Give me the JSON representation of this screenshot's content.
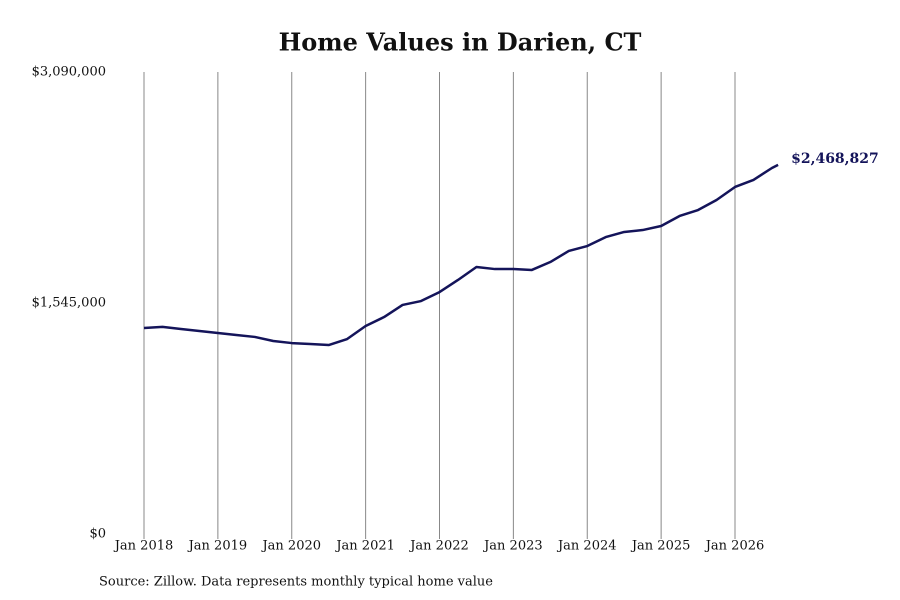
{
  "chart_data": {
    "type": "line",
    "title": "Home Values in Darien, CT",
    "source": "Source: Zillow. Data represents monthly typical home value",
    "x": [
      "2018-01",
      "2018-04",
      "2018-07",
      "2018-10",
      "2019-01",
      "2019-04",
      "2019-07",
      "2019-10",
      "2020-01",
      "2020-04",
      "2020-07",
      "2020-10",
      "2021-01",
      "2021-04",
      "2021-07",
      "2021-10",
      "2022-01",
      "2022-04",
      "2022-07",
      "2022-10",
      "2023-01",
      "2023-04",
      "2023-07",
      "2023-10",
      "2024-01",
      "2024-04",
      "2024-07",
      "2024-10",
      "2025-01",
      "2025-04",
      "2025-07",
      "2025-10",
      "2026-01",
      "2026-04",
      "2026-07",
      "2026-08"
    ],
    "series": [
      {
        "name": "Home value",
        "color": "#14145a",
        "values": [
          1378000,
          1385000,
          1371000,
          1358000,
          1344000,
          1331000,
          1318000,
          1291000,
          1277000,
          1271000,
          1264000,
          1304000,
          1391000,
          1451000,
          1532000,
          1558000,
          1618000,
          1699000,
          1786000,
          1772000,
          1772000,
          1766000,
          1819000,
          1893000,
          1926000,
          1986000,
          2020000,
          2033000,
          2060000,
          2127000,
          2167000,
          2234000,
          2321000,
          2368000,
          2448000,
          2468827
        ],
        "value_labels": [
          null,
          null,
          null,
          null,
          null,
          null,
          null,
          null,
          null,
          null,
          null,
          null,
          null,
          null,
          null,
          null,
          null,
          null,
          null,
          null,
          null,
          null,
          null,
          null,
          null,
          null,
          null,
          null,
          null,
          null,
          null,
          null,
          null,
          null,
          null,
          "$2,468,827"
        ]
      }
    ],
    "xticks": [
      {
        "value": "2018-01",
        "label": "Jan 2018"
      },
      {
        "value": "2019-01",
        "label": "Jan 2019"
      },
      {
        "value": "2020-01",
        "label": "Jan 2020"
      },
      {
        "value": "2021-01",
        "label": "Jan 2021"
      },
      {
        "value": "2022-01",
        "label": "Jan 2022"
      },
      {
        "value": "2023-01",
        "label": "Jan 2023"
      },
      {
        "value": "2024-01",
        "label": "Jan 2024"
      },
      {
        "value": "2025-01",
        "label": "Jan 2025"
      },
      {
        "value": "2026-01",
        "label": "Jan 2026"
      }
    ],
    "ylim": [
      0,
      3090000
    ],
    "yticks": [
      {
        "value": 0,
        "label": "$0"
      },
      {
        "value": 1545000,
        "label": "$1,545,000"
      },
      {
        "value": 3090000,
        "label": "$3,090,000"
      }
    ],
    "grid": "x"
  }
}
